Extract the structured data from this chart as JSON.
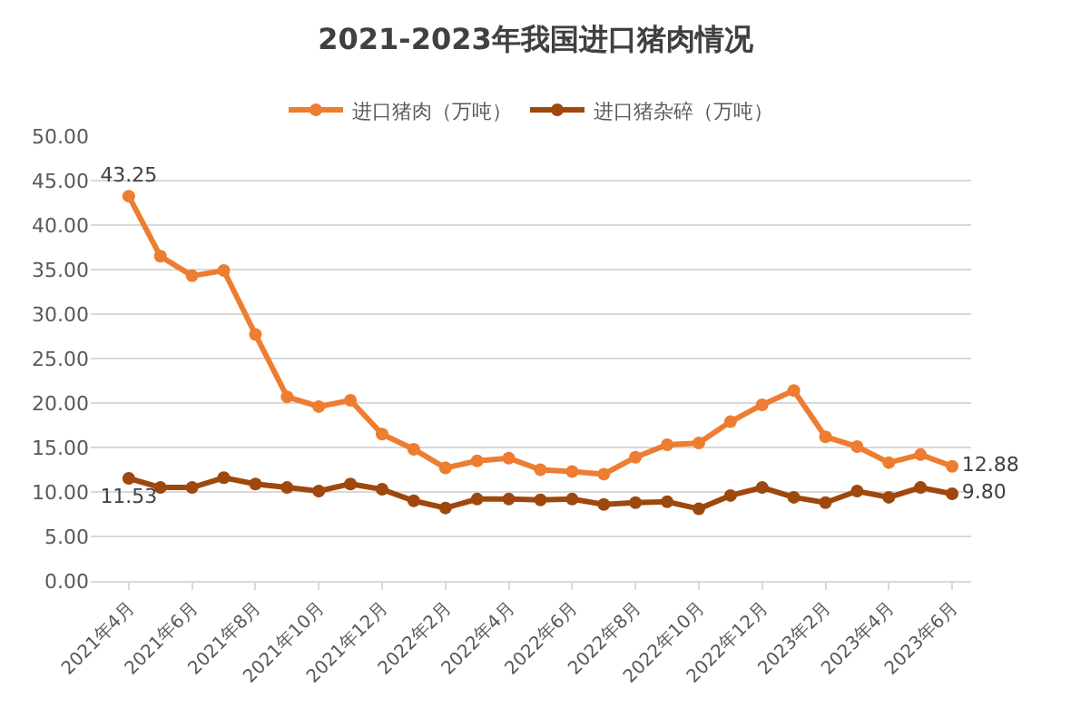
{
  "chart_data": {
    "type": "line",
    "title": "2021-2023年我国进口猪肉情况",
    "categories": [
      "2021年4月",
      null,
      "2021年6月",
      null,
      "2021年8月",
      null,
      "2021年10月",
      null,
      "2021年12月",
      null,
      "2022年2月",
      null,
      "2022年4月",
      null,
      "2022年6月",
      null,
      "2022年8月",
      null,
      "2022年10月",
      null,
      "2022年12月",
      null,
      "2023年2月",
      null,
      "2023年4月",
      null,
      "2023年6月"
    ],
    "series": [
      {
        "name": "进口猪肉（万吨）",
        "color": "#ed7d31",
        "values": [
          43.25,
          36.5,
          34.3,
          34.9,
          27.7,
          20.7,
          19.6,
          20.3,
          16.5,
          14.8,
          12.7,
          13.5,
          13.8,
          12.5,
          12.3,
          12.0,
          13.9,
          15.3,
          15.5,
          17.9,
          19.8,
          21.4,
          16.2,
          15.1,
          13.3,
          14.2,
          12.88
        ],
        "value_labels": [
          "43.25",
          null,
          null,
          null,
          null,
          null,
          null,
          null,
          null,
          null,
          null,
          null,
          null,
          null,
          null,
          null,
          null,
          null,
          null,
          null,
          null,
          null,
          null,
          null,
          null,
          null,
          "12.88"
        ]
      },
      {
        "name": "进口猪杂碎（万吨）",
        "color": "#9e480e",
        "values": [
          11.53,
          10.5,
          10.5,
          11.6,
          10.9,
          10.5,
          10.1,
          10.9,
          10.3,
          9.0,
          8.2,
          9.2,
          9.2,
          9.1,
          9.2,
          8.6,
          8.8,
          8.9,
          8.1,
          9.6,
          10.5,
          9.4,
          8.8,
          10.1,
          9.4,
          10.5,
          9.8
        ],
        "value_labels": [
          "11.53",
          null,
          null,
          null,
          null,
          null,
          null,
          null,
          null,
          null,
          null,
          null,
          null,
          null,
          null,
          null,
          null,
          null,
          null,
          null,
          null,
          null,
          null,
          null,
          null,
          null,
          "9.80"
        ]
      }
    ],
    "ylim": [
      0,
      50
    ],
    "yticks": [
      {
        "value": 0,
        "label": "0.00"
      },
      {
        "value": 5,
        "label": "5.00"
      },
      {
        "value": 10,
        "label": "10.00"
      },
      {
        "value": 15,
        "label": "15.00"
      },
      {
        "value": 20,
        "label": "20.00"
      },
      {
        "value": 25,
        "label": "25.00"
      },
      {
        "value": 30,
        "label": "30.00"
      },
      {
        "value": 35,
        "label": "35.00"
      },
      {
        "value": 40,
        "label": "40.00"
      },
      {
        "value": 45,
        "label": "45.00"
      },
      {
        "value": 50,
        "label": "50.00"
      }
    ],
    "grid": "y",
    "legend": "top",
    "marker": "circle",
    "line_style": "solid"
  }
}
